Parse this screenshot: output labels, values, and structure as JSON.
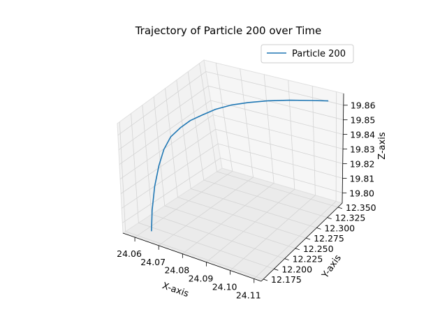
{
  "chart_data": {
    "type": "line",
    "projection": "3d",
    "title": "Trajectory of Particle 200 over Time",
    "xlabel": "X-axis",
    "ylabel": "Y-axis",
    "zlabel": "Z-axis",
    "xlim": [
      24.055,
      24.113
    ],
    "ylim": [
      12.17,
      12.36
    ],
    "zlim": [
      19.793,
      19.868
    ],
    "x_ticks": [
      "24.06",
      "24.07",
      "24.08",
      "24.09",
      "24.10",
      "24.11"
    ],
    "y_ticks": [
      "12.175",
      "12.200",
      "12.225",
      "12.250",
      "12.275",
      "12.300",
      "12.325",
      "12.350"
    ],
    "z_ticks": [
      "19.80",
      "19.81",
      "19.82",
      "19.83",
      "19.84",
      "19.85",
      "19.86"
    ],
    "grid": true,
    "legend_position": "upper-right",
    "series": [
      {
        "name": "Particle 200",
        "color": "#1f77b4",
        "x": [
          24.0625,
          24.062,
          24.062,
          24.0625,
          24.063,
          24.064,
          24.066,
          24.068,
          24.071,
          24.074,
          24.078,
          24.083,
          24.089,
          24.096,
          24.103,
          24.109
        ],
        "y": [
          12.191,
          12.197,
          12.205,
          12.214,
          12.224,
          12.235,
          12.247,
          12.259,
          12.271,
          12.284,
          12.297,
          12.309,
          12.321,
          12.332,
          12.341,
          12.348
        ],
        "z": [
          19.7935,
          19.806,
          19.8205,
          19.833,
          19.842,
          19.8485,
          19.853,
          19.856,
          19.8585,
          19.8605,
          19.862,
          19.863,
          19.8637,
          19.8642,
          19.8645,
          19.8647
        ]
      }
    ]
  }
}
